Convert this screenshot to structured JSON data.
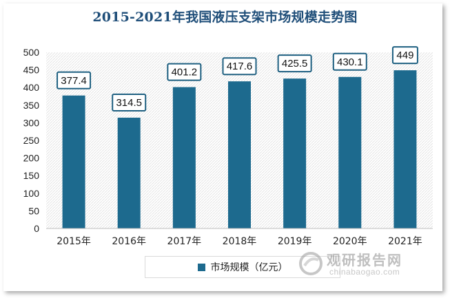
{
  "chart_data": {
    "type": "bar",
    "title": "2015-2021年我国液压支架市场规模走势图",
    "categories": [
      "2015年",
      "2016年",
      "2017年",
      "2018年",
      "2019年",
      "2020年",
      "2021年"
    ],
    "series": [
      {
        "name": "市场规模（亿元）",
        "values": [
          377.4,
          314.5,
          401.2,
          417.6,
          425.5,
          430.1,
          449
        ]
      }
    ],
    "data_labels": [
      "377.4",
      "314.5",
      "401.2",
      "417.6",
      "425.5",
      "430.1",
      "449"
    ],
    "yticks": [
      0,
      50,
      100,
      150,
      200,
      250,
      300,
      350,
      400,
      450,
      500
    ],
    "ylim": [
      0,
      500
    ],
    "xlabel": "",
    "ylabel": "",
    "legend_position": "bottom",
    "colors": {
      "bar": "#1d6a8e",
      "label_border": "#1d5f80",
      "title": "#1f4e79"
    }
  },
  "watermark": {
    "cn": "观研报告网",
    "en": "chinabaogao.com"
  }
}
